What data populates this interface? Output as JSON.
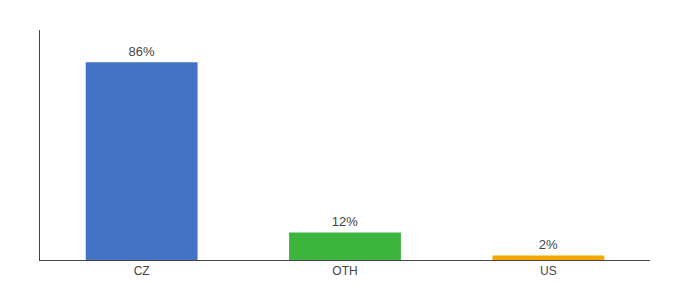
{
  "chart_data": {
    "type": "bar",
    "categories": [
      "CZ",
      "OTH",
      "US"
    ],
    "values": [
      86,
      12,
      2
    ],
    "value_labels": [
      "86%",
      "12%",
      "2%"
    ],
    "colors": [
      "#4472c4",
      "#3db53d",
      "#f5a800"
    ],
    "ylim": [
      0,
      100
    ],
    "grid": false,
    "data_labels": true,
    "tick_labels": "x"
  }
}
